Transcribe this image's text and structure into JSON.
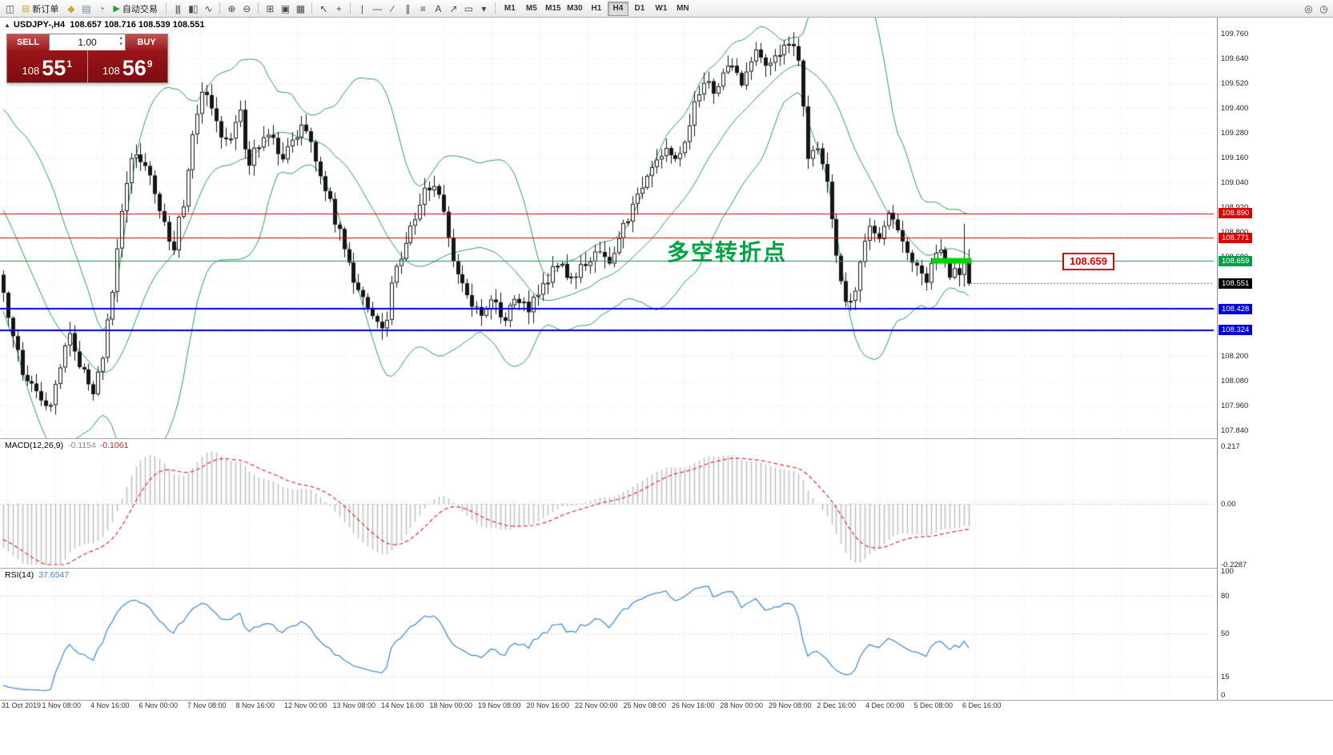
{
  "toolbar": {
    "items": [
      {
        "type": "icon",
        "name": "chart-app-icon",
        "glyph": "◫",
        "color": "#555555"
      },
      {
        "type": "button",
        "name": "new-order-button",
        "glyph": "▤",
        "glyph_color": "#caa53c",
        "label": "新订单"
      },
      {
        "type": "icon",
        "name": "profiles-icon",
        "glyph": "◆",
        "color": "#caa53c"
      },
      {
        "type": "icon",
        "name": "print-icon",
        "glyph": "▤",
        "color": "#6b7fa3"
      },
      {
        "type": "icon",
        "name": "refresh-icon",
        "glyph": "◔",
        "color": "#6b7fa3"
      },
      {
        "type": "button",
        "name": "autotrade-button",
        "glyph": "▶",
        "glyph_color": "#22a02c",
        "label": "自动交易"
      },
      {
        "type": "sep"
      },
      {
        "type": "icon",
        "name": "bar-chart-icon",
        "glyph": "|||"
      },
      {
        "type": "icon",
        "name": "candlestick-chart-icon",
        "glyph": "▮▯"
      },
      {
        "type": "icon",
        "name": "line-chart-icon",
        "glyph": "∿"
      },
      {
        "type": "sep"
      },
      {
        "type": "icon",
        "name": "zoom-in-icon",
        "glyph": "⊕"
      },
      {
        "type": "icon",
        "name": "zoom-out-icon",
        "glyph": "⊖"
      },
      {
        "type": "sep"
      },
      {
        "type": "icon",
        "name": "tile-windows-icon",
        "glyph": "⊞"
      },
      {
        "type": "icon",
        "name": "auto-arrange-icon",
        "glyph": "▣"
      },
      {
        "type": "icon",
        "name": "grid-icon",
        "glyph": "▦"
      },
      {
        "type": "sep"
      },
      {
        "type": "icon",
        "name": "cursor-icon",
        "glyph": "↖"
      },
      {
        "type": "icon",
        "name": "crosshair-icon",
        "glyph": "+"
      },
      {
        "type": "sep"
      },
      {
        "type": "icon",
        "name": "vertical-line-icon",
        "glyph": "|"
      },
      {
        "type": "icon",
        "name": "horizontal-line-icon",
        "glyph": "—"
      },
      {
        "type": "icon",
        "name": "trendline-icon",
        "glyph": "∕"
      },
      {
        "type": "icon",
        "name": "channel-icon",
        "glyph": "∥"
      },
      {
        "type": "icon",
        "name": "fibonacci-icon",
        "glyph": "≡"
      },
      {
        "type": "icon",
        "name": "text-icon",
        "glyph": "A"
      },
      {
        "type": "icon",
        "name": "arrow-object-icon",
        "glyph": "↗"
      },
      {
        "type": "icon",
        "name": "shapes-icon",
        "glyph": "▭"
      },
      {
        "type": "icon",
        "name": "dropdown-icon",
        "glyph": "▾"
      },
      {
        "type": "sep"
      },
      {
        "type": "timeframes"
      },
      {
        "type": "spacer"
      },
      {
        "type": "icon",
        "name": "search-icon",
        "glyph": "◎"
      },
      {
        "type": "icon",
        "name": "clock-icon",
        "glyph": "◷"
      }
    ],
    "timeframes": [
      "M1",
      "M5",
      "M15",
      "M30",
      "H1",
      "H4",
      "D1",
      "W1",
      "MN"
    ],
    "active_timeframe": "H4"
  },
  "ohlc_header": {
    "collapse_icon": "▲",
    "symbol": "USDJPY-,H4",
    "values": "108.657 108.716 108.539 108.551"
  },
  "trade_panel": {
    "sell_label": "SELL",
    "buy_label": "BUY",
    "volume": "1.00",
    "spin_up": "▴",
    "spin_down": "▾",
    "sell": {
      "prefix": "108",
      "big": "55",
      "sup": "1"
    },
    "buy": {
      "prefix": "108",
      "big": "56",
      "sup": "9"
    }
  },
  "annotation": "多空转折点",
  "price_tag": "108.659",
  "chart_data": {
    "type": "candlestick",
    "symbol": "USDJPY-",
    "timeframe": "H4",
    "last_ohlc": {
      "open": 108.657,
      "high": 108.716,
      "low": 108.539,
      "close": 108.551
    },
    "price_axis": {
      "min": 107.84,
      "max": 109.76,
      "step": 0.12,
      "labels": [
        "109.760",
        "109.640",
        "109.520",
        "109.400",
        "109.280",
        "109.160",
        "109.040",
        "108.920",
        "108.800",
        "108.680",
        "108.200",
        "108.080",
        "107.960",
        "107.840"
      ]
    },
    "hlines": [
      {
        "price": 108.89,
        "label": "108.890",
        "color": "#dd0000",
        "width": 1
      },
      {
        "price": 108.771,
        "label": "108.771",
        "color": "#dd0000",
        "width": 1
      },
      {
        "price": 108.659,
        "label": "108.659",
        "color": "#00a04a",
        "width": 1
      },
      {
        "price": 108.428,
        "label": "108.428",
        "color": "#0000dd",
        "width": 2
      },
      {
        "price": 108.324,
        "label": "108.324",
        "color": "#0000dd",
        "width": 2
      }
    ],
    "current_price": {
      "value": 108.551,
      "label": "108.551",
      "color": "#000000"
    },
    "candles": 205,
    "warmup": 20,
    "seed": 7,
    "keypoints": [
      [
        0.0,
        108.5
      ],
      [
        0.008,
        108.36
      ],
      [
        0.02,
        108.1
      ],
      [
        0.035,
        108.0
      ],
      [
        0.048,
        107.97
      ],
      [
        0.058,
        108.14
      ],
      [
        0.068,
        108.3
      ],
      [
        0.08,
        108.16
      ],
      [
        0.092,
        108.03
      ],
      [
        0.102,
        108.14
      ],
      [
        0.112,
        108.5
      ],
      [
        0.125,
        108.95
      ],
      [
        0.135,
        109.2
      ],
      [
        0.148,
        109.1
      ],
      [
        0.16,
        108.92
      ],
      [
        0.175,
        108.73
      ],
      [
        0.185,
        108.9
      ],
      [
        0.198,
        109.3
      ],
      [
        0.207,
        109.48
      ],
      [
        0.215,
        109.4
      ],
      [
        0.225,
        109.28
      ],
      [
        0.235,
        109.22
      ],
      [
        0.245,
        109.38
      ],
      [
        0.252,
        109.1
      ],
      [
        0.262,
        109.2
      ],
      [
        0.275,
        109.3
      ],
      [
        0.288,
        109.18
      ],
      [
        0.3,
        109.25
      ],
      [
        0.312,
        109.33
      ],
      [
        0.325,
        109.1
      ],
      [
        0.338,
        108.95
      ],
      [
        0.352,
        108.72
      ],
      [
        0.368,
        108.5
      ],
      [
        0.385,
        108.38
      ],
      [
        0.395,
        108.28
      ],
      [
        0.402,
        108.55
      ],
      [
        0.415,
        108.72
      ],
      [
        0.432,
        108.95
      ],
      [
        0.445,
        109.05
      ],
      [
        0.455,
        108.88
      ],
      [
        0.468,
        108.62
      ],
      [
        0.482,
        108.46
      ],
      [
        0.495,
        108.4
      ],
      [
        0.508,
        108.47
      ],
      [
        0.52,
        108.37
      ],
      [
        0.532,
        108.48
      ],
      [
        0.545,
        108.4
      ],
      [
        0.558,
        108.55
      ],
      [
        0.572,
        108.65
      ],
      [
        0.588,
        108.58
      ],
      [
        0.602,
        108.64
      ],
      [
        0.615,
        108.72
      ],
      [
        0.628,
        108.65
      ],
      [
        0.642,
        108.82
      ],
      [
        0.658,
        109.0
      ],
      [
        0.672,
        109.12
      ],
      [
        0.685,
        109.22
      ],
      [
        0.698,
        109.12
      ],
      [
        0.712,
        109.35
      ],
      [
        0.725,
        109.55
      ],
      [
        0.738,
        109.48
      ],
      [
        0.752,
        109.6
      ],
      [
        0.765,
        109.52
      ],
      [
        0.778,
        109.68
      ],
      [
        0.79,
        109.6
      ],
      [
        0.802,
        109.66
      ],
      [
        0.815,
        109.73
      ],
      [
        0.825,
        109.6
      ],
      [
        0.833,
        109.15
      ],
      [
        0.843,
        109.22
      ],
      [
        0.852,
        109.05
      ],
      [
        0.862,
        108.72
      ],
      [
        0.872,
        108.46
      ],
      [
        0.883,
        108.52
      ],
      [
        0.895,
        108.84
      ],
      [
        0.907,
        108.78
      ],
      [
        0.918,
        108.88
      ],
      [
        0.93,
        108.76
      ],
      [
        0.942,
        108.62
      ],
      [
        0.955,
        108.57
      ],
      [
        0.968,
        108.73
      ],
      [
        0.98,
        108.6
      ],
      [
        0.992,
        108.62
      ],
      [
        1.0,
        108.55
      ]
    ],
    "highlight": {
      "from": 0.962,
      "to": 1.003,
      "price": 108.662,
      "color": "#00d300"
    },
    "bollinger": {
      "period": 20,
      "deviation": 2,
      "color": "#2e9e5b"
    },
    "macd": {
      "name": "MACD(12,26,9)",
      "value_main": "-0.1154",
      "value_signal": "-0.1061",
      "axis": [
        "0.217",
        "0.00",
        "-0.2287"
      ],
      "max": 0.217,
      "min": -0.2287,
      "hist_color": "#c2c2c2",
      "signal_color": "#e03232"
    },
    "rsi": {
      "name": "RSI(14)",
      "value": "37.6547",
      "axis": [
        "100",
        "80",
        "50",
        "15",
        "0"
      ],
      "levels": [
        80,
        50,
        15
      ],
      "color": "#4a8fd4",
      "max": 100,
      "min": 0
    },
    "x_labels": [
      "31 Oct 2019",
      "1 Nov 08:00",
      "4 Nov 16:00",
      "6 Nov 00:00",
      "7 Nov 08:00",
      "8 Nov 16:00",
      "12 Nov 00:00",
      "13 Nov 08:00",
      "14 Nov 16:00",
      "18 Nov 00:00",
      "19 Nov 08:00",
      "20 Nov 16:00",
      "22 Nov 00:00",
      "25 Nov 08:00",
      "26 Nov 16:00",
      "28 Nov 00:00",
      "29 Nov 08:00",
      "2 Dec 16:00",
      "4 Dec 00:00",
      "5 Dec 08:00",
      "6 Dec 16:00"
    ]
  }
}
